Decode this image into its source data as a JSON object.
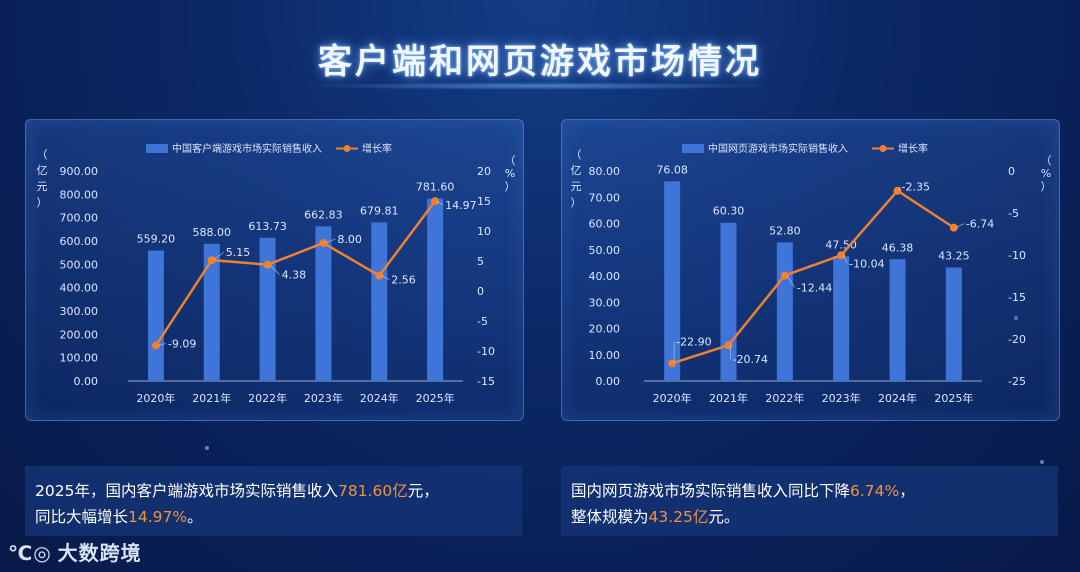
{
  "page": {
    "title": "客户端和网页游戏市场情况"
  },
  "colors": {
    "bar": "#3f74d8",
    "line": "#ed8131",
    "highlight": "#f0913d",
    "axis_text": "#dbe6ff"
  },
  "chart_data": [
    {
      "type": "bar+line",
      "categories": [
        "2020年",
        "2021年",
        "2022年",
        "2023年",
        "2024年",
        "2025年"
      ],
      "series": [
        {
          "name": "中国客户端游戏市场实际销售收入",
          "type": "bar",
          "axis": "left",
          "values": [
            559.2,
            588.0,
            613.73,
            662.83,
            679.81,
            781.6
          ],
          "labels": [
            "559.20",
            "588.00",
            "613.73",
            "662.83",
            "679.81",
            "781.60"
          ]
        },
        {
          "name": "增长率",
          "type": "line",
          "axis": "right",
          "values": [
            -9.09,
            5.15,
            4.38,
            8.0,
            2.56,
            14.97
          ],
          "labels": [
            "-9.09",
            "5.15",
            "4.38",
            "8.00",
            "2.56",
            "14.97"
          ]
        }
      ],
      "left_axis": {
        "label": [
          "（",
          "亿",
          "元",
          "）"
        ],
        "ylim": [
          0,
          900
        ],
        "ticks": [
          "900.00",
          "800.00",
          "700.00",
          "600.00",
          "500.00",
          "400.00",
          "300.00",
          "200.00",
          "100.00",
          "0.00"
        ]
      },
      "right_axis": {
        "label": [
          "（",
          "%",
          "）"
        ],
        "ylim": [
          -15,
          20
        ],
        "ticks": [
          "20",
          "15",
          "10",
          "5",
          "0",
          "-5",
          "-10",
          "-15"
        ]
      },
      "legend_position": "top-center"
    },
    {
      "type": "bar+line",
      "categories": [
        "2020年",
        "2021年",
        "2022年",
        "2023年",
        "2024年",
        "2025年"
      ],
      "series": [
        {
          "name": "中国网页游戏市场实际销售收入",
          "type": "bar",
          "axis": "left",
          "values": [
            76.08,
            60.3,
            52.8,
            47.5,
            46.38,
            43.25
          ],
          "labels": [
            "76.08",
            "60.30",
            "52.80",
            "47.50",
            "46.38",
            "43.25"
          ]
        },
        {
          "name": "增长率",
          "type": "line",
          "axis": "right",
          "values": [
            -22.9,
            -20.74,
            -12.44,
            -10.04,
            -2.35,
            -6.74
          ],
          "labels": [
            "-22.90",
            "-20.74",
            "-12.44",
            "-10.04",
            "-2.35",
            "-6.74"
          ]
        }
      ],
      "left_axis": {
        "label": [
          "（",
          "亿",
          "元",
          "）"
        ],
        "ylim": [
          0,
          80
        ],
        "ticks": [
          "80.00",
          "70.00",
          "60.00",
          "50.00",
          "40.00",
          "30.00",
          "20.00",
          "10.00",
          "0.00"
        ]
      },
      "right_axis": {
        "label": [
          "（",
          "%",
          "）"
        ],
        "ylim": [
          -25,
          0
        ],
        "ticks": [
          "0",
          "-5",
          "-10",
          "-15",
          "-20",
          "-25"
        ]
      },
      "legend_position": "top-center"
    }
  ],
  "notes": {
    "left": {
      "p1": "2025年，国内客户端游戏市场实际销售收入",
      "h1": "781.60亿",
      "p2": "元，",
      "p3": "同比大幅增长",
      "h2": "14.97%",
      "p4": "。"
    },
    "right": {
      "p1": "国内网页游戏市场实际销售收入同比下降",
      "h1": "6.74%",
      "p2": "，",
      "p3": "整体规模为",
      "h2": "43.25亿",
      "p4": "元。"
    }
  },
  "logo": {
    "mark": "℃◎",
    "text": "大数跨境"
  }
}
